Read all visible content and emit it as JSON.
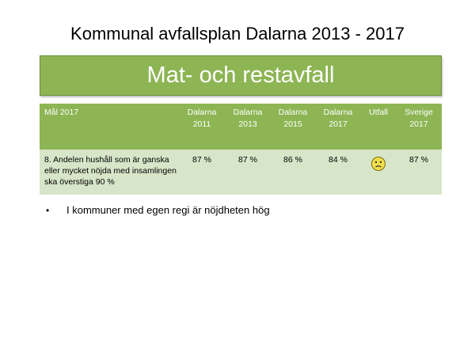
{
  "slide": {
    "title": "Kommunal avfallsplan Dalarna 2013 - 2017",
    "banner": "Mat- och restavfall"
  },
  "table": {
    "headers": {
      "goal": "Mål 2017",
      "d2011": [
        "Dalarna",
        "2011"
      ],
      "d2013": [
        "Dalarna",
        "2013"
      ],
      "d2015": [
        "Dalarna",
        "2015"
      ],
      "d2017": [
        "Dalarna",
        "2017"
      ],
      "outcome": "Utfall",
      "sverige": [
        "Sverige",
        "2017"
      ]
    },
    "row": {
      "goal": "8. Andelen hushåll som är ganska eller mycket nöjda med insamlingen ska överstiga 90 %",
      "d2011": "87 %",
      "d2013": "87 %",
      "d2015": "86 %",
      "d2017": "84 %",
      "outcome_icon": "sad-face-icon",
      "sverige": "87 %"
    }
  },
  "bullets": [
    {
      "symbol": "•",
      "text": "I kommuner med egen regi är nöjdheten hög"
    }
  ],
  "colors": {
    "accent_green": "#8db554",
    "row_green": "#d7e5c8",
    "smiley_yellow": "#f2e04a"
  }
}
